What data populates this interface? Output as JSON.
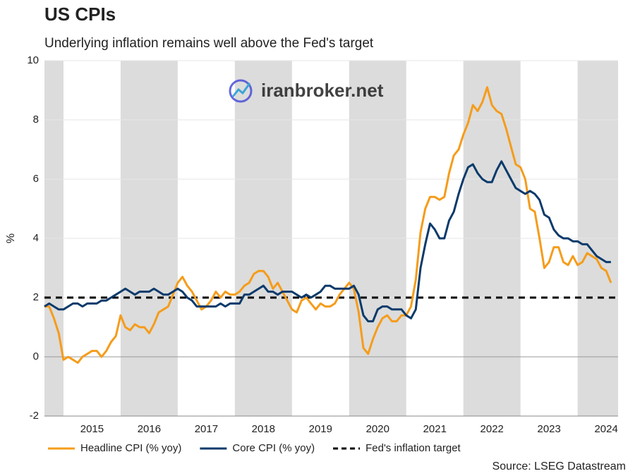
{
  "chart_data": {
    "type": "line",
    "title": "US CPIs",
    "subtitle": "Underlying inflation remains well above the Fed's target",
    "y_label": "%",
    "watermark": "iranbroker.net",
    "source": "Source: LSEG Datastream",
    "x": [
      2014.667,
      2014.75,
      2014.833,
      2014.917,
      2015,
      2015.083,
      2015.167,
      2015.25,
      2015.333,
      2015.417,
      2015.5,
      2015.583,
      2015.667,
      2015.75,
      2015.833,
      2015.917,
      2016,
      2016.083,
      2016.167,
      2016.25,
      2016.333,
      2016.417,
      2016.5,
      2016.583,
      2016.667,
      2016.75,
      2016.833,
      2016.917,
      2017,
      2017.083,
      2017.167,
      2017.25,
      2017.333,
      2017.417,
      2017.5,
      2017.583,
      2017.667,
      2017.75,
      2017.833,
      2017.917,
      2018,
      2018.083,
      2018.167,
      2018.25,
      2018.333,
      2018.417,
      2018.5,
      2018.583,
      2018.667,
      2018.75,
      2018.833,
      2018.917,
      2019,
      2019.083,
      2019.167,
      2019.25,
      2019.333,
      2019.417,
      2019.5,
      2019.583,
      2019.667,
      2019.75,
      2019.833,
      2019.917,
      2020,
      2020.083,
      2020.167,
      2020.25,
      2020.333,
      2020.417,
      2020.5,
      2020.583,
      2020.667,
      2020.75,
      2020.833,
      2020.917,
      2021,
      2021.083,
      2021.167,
      2021.25,
      2021.333,
      2021.417,
      2021.5,
      2021.583,
      2021.667,
      2021.75,
      2021.833,
      2021.917,
      2022,
      2022.083,
      2022.167,
      2022.25,
      2022.333,
      2022.417,
      2022.5,
      2022.583,
      2022.667,
      2022.75,
      2022.833,
      2022.917,
      2023,
      2023.083,
      2023.167,
      2023.25,
      2023.333,
      2023.417,
      2023.5,
      2023.583,
      2023.667,
      2023.75,
      2023.833,
      2023.917,
      2024,
      2024.083,
      2024.167,
      2024.25,
      2024.333,
      2024.417,
      2024.5,
      2024.583
    ],
    "series": [
      {
        "name": "Headline CPI (% yoy)",
        "color": "#f59c1a",
        "values": [
          1.7,
          1.7,
          1.3,
          0.8,
          -0.1,
          0.0,
          -0.1,
          -0.2,
          0.0,
          0.1,
          0.2,
          0.2,
          0.0,
          0.2,
          0.5,
          0.7,
          1.4,
          1.0,
          0.9,
          1.1,
          1.0,
          1.0,
          0.8,
          1.1,
          1.5,
          1.6,
          1.7,
          2.1,
          2.5,
          2.7,
          2.4,
          2.2,
          1.9,
          1.6,
          1.7,
          1.9,
          2.2,
          2.0,
          2.2,
          2.1,
          2.1,
          2.2,
          2.4,
          2.5,
          2.8,
          2.9,
          2.9,
          2.7,
          2.3,
          2.5,
          2.2,
          1.9,
          1.6,
          1.5,
          1.9,
          2.0,
          1.8,
          1.6,
          1.8,
          1.7,
          1.7,
          1.8,
          2.1,
          2.3,
          2.5,
          2.3,
          1.5,
          0.3,
          0.1,
          0.6,
          1.0,
          1.3,
          1.4,
          1.2,
          1.2,
          1.4,
          1.4,
          1.7,
          2.6,
          4.2,
          5.0,
          5.4,
          5.4,
          5.3,
          5.4,
          6.2,
          6.8,
          7.0,
          7.5,
          7.9,
          8.5,
          8.3,
          8.6,
          9.1,
          8.5,
          8.3,
          8.2,
          7.7,
          7.1,
          6.5,
          6.4,
          6.0,
          5.0,
          4.9,
          4.0,
          3.0,
          3.2,
          3.7,
          3.7,
          3.2,
          3.1,
          3.4,
          3.1,
          3.2,
          3.5,
          3.4,
          3.3,
          3.0,
          2.9,
          2.5
        ]
      },
      {
        "name": "Core CPI (% yoy)",
        "color": "#0b3a6b",
        "values": [
          1.7,
          1.8,
          1.7,
          1.6,
          1.6,
          1.7,
          1.8,
          1.8,
          1.7,
          1.8,
          1.8,
          1.8,
          1.9,
          1.9,
          2.0,
          2.1,
          2.2,
          2.3,
          2.2,
          2.1,
          2.2,
          2.2,
          2.2,
          2.3,
          2.2,
          2.1,
          2.1,
          2.2,
          2.3,
          2.2,
          2.0,
          1.9,
          1.7,
          1.7,
          1.7,
          1.7,
          1.7,
          1.8,
          1.7,
          1.8,
          1.8,
          1.8,
          2.1,
          2.1,
          2.2,
          2.3,
          2.4,
          2.2,
          2.2,
          2.1,
          2.2,
          2.2,
          2.2,
          2.1,
          2.0,
          2.1,
          2.0,
          2.1,
          2.2,
          2.4,
          2.4,
          2.3,
          2.3,
          2.3,
          2.3,
          2.4,
          2.1,
          1.4,
          1.2,
          1.2,
          1.6,
          1.7,
          1.7,
          1.6,
          1.6,
          1.6,
          1.4,
          1.3,
          1.6,
          3.0,
          3.8,
          4.5,
          4.3,
          4.0,
          4.0,
          4.6,
          4.9,
          5.5,
          6.0,
          6.4,
          6.5,
          6.2,
          6.0,
          5.9,
          5.9,
          6.3,
          6.6,
          6.3,
          6.0,
          5.7,
          5.6,
          5.5,
          5.6,
          5.5,
          5.3,
          4.8,
          4.7,
          4.3,
          4.1,
          4.0,
          4.0,
          3.9,
          3.9,
          3.8,
          3.8,
          3.6,
          3.4,
          3.3,
          3.2,
          3.2
        ]
      }
    ],
    "reference_line": {
      "name": "Fed's inflation target",
      "value": 2,
      "color": "#000000"
    },
    "xlim": [
      2014.667,
      2024.708
    ],
    "xticks": [
      {
        "value": 2015.5,
        "label": "2015"
      },
      {
        "value": 2016.5,
        "label": "2016"
      },
      {
        "value": 2017.5,
        "label": "2017"
      },
      {
        "value": 2018.5,
        "label": "2018"
      },
      {
        "value": 2019.5,
        "label": "2019"
      },
      {
        "value": 2020.5,
        "label": "2020"
      },
      {
        "value": 2021.5,
        "label": "2021"
      },
      {
        "value": 2022.5,
        "label": "2022"
      },
      {
        "value": 2023.5,
        "label": "2023"
      },
      {
        "value": 2024.5,
        "label": "2024"
      }
    ],
    "ylim": [
      -2,
      10
    ],
    "yticks": [
      -2,
      0,
      2,
      4,
      6,
      8,
      10
    ],
    "grid": true,
    "legend": "bottom"
  }
}
